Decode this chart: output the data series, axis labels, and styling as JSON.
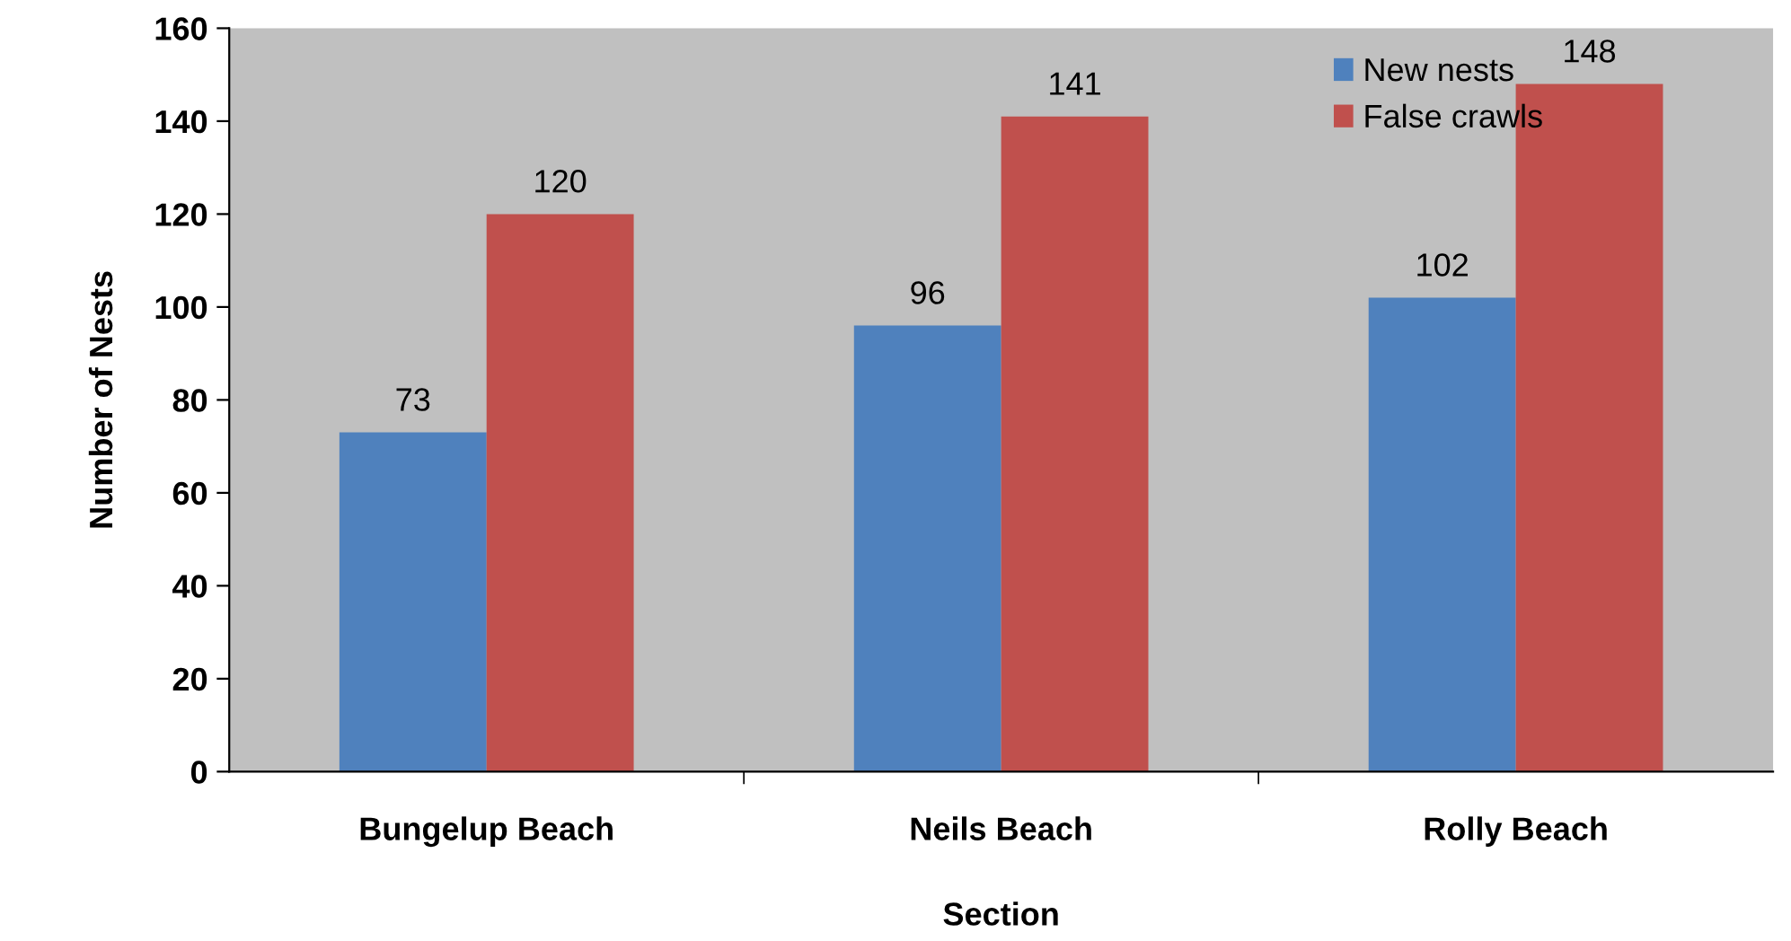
{
  "chart_data": {
    "type": "bar",
    "xlabel": "Section",
    "ylabel": "Number of Nests",
    "categories": [
      "Bungelup Beach",
      "Neils Beach",
      "Rolly Beach"
    ],
    "series": [
      {
        "name": "New nests",
        "color": "#4f81bd",
        "values": [
          73,
          96,
          102
        ]
      },
      {
        "name": "False crawls",
        "color": "#c0504d",
        "values": [
          120,
          141,
          148
        ]
      }
    ],
    "ylim": [
      0,
      160
    ],
    "yticks": [
      0,
      20,
      40,
      60,
      80,
      100,
      120,
      140,
      160
    ],
    "grid": false,
    "legend": "top right",
    "data_labels": true
  }
}
